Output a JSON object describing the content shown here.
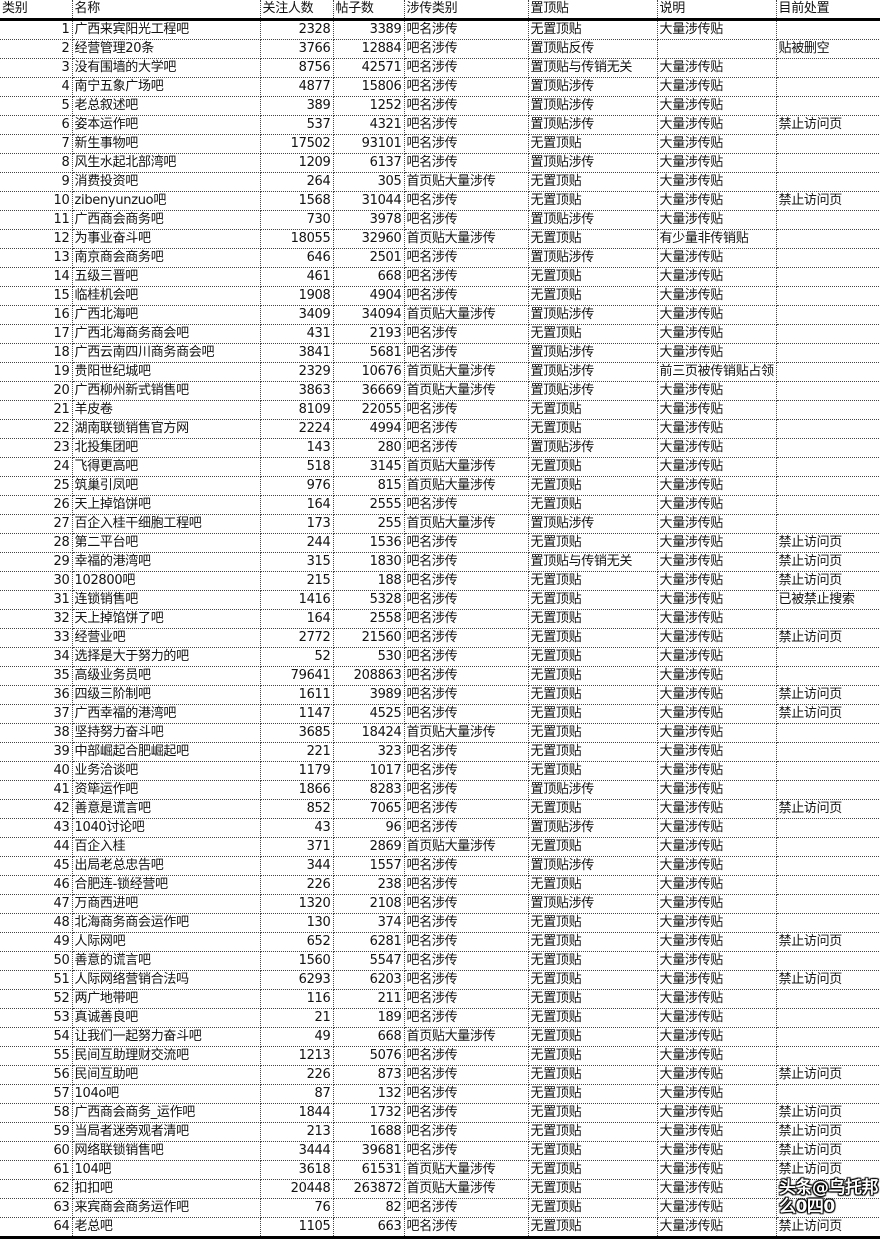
{
  "headers": [
    "类别",
    "名称",
    "关注人数",
    "帖子数",
    "涉传类别",
    "置顶贴",
    "说明",
    "目前处置"
  ],
  "rows": [
    [
      "1",
      "广西来宾阳光工程吧",
      "2328",
      "3389",
      "吧名涉传",
      "无置顶贴",
      "大量涉传贴",
      ""
    ],
    [
      "2",
      "经营管理20条",
      "3766",
      "12884",
      "吧名涉传",
      "置顶贴反传",
      "",
      "贴被删空"
    ],
    [
      "3",
      "没有围墙的大学吧",
      "8756",
      "42571",
      "吧名涉传",
      "置顶贴与传销无关",
      "大量涉传贴",
      ""
    ],
    [
      "4",
      "南宁五象广场吧",
      "4877",
      "15806",
      "吧名涉传",
      "置顶贴涉传",
      "大量涉传贴",
      ""
    ],
    [
      "5",
      "老总叙述吧",
      "389",
      "1252",
      "吧名涉传",
      "置顶贴涉传",
      "大量涉传贴",
      ""
    ],
    [
      "6",
      "姿本运作吧",
      "537",
      "4321",
      "吧名涉传",
      "置顶贴涉传",
      "大量涉传贴",
      "禁止访问页"
    ],
    [
      "7",
      "新生事物吧",
      "17502",
      "93101",
      "吧名涉传",
      "无置顶贴",
      "大量涉传贴",
      ""
    ],
    [
      "8",
      "风生水起北部湾吧",
      "1209",
      "6137",
      "吧名涉传",
      "置顶贴涉传",
      "大量涉传贴",
      ""
    ],
    [
      "9",
      "消费投资吧",
      "264",
      "305",
      "首页贴大量涉传",
      "无置顶贴",
      "大量涉传贴",
      ""
    ],
    [
      "10",
      "zibenyunzuo吧",
      "1568",
      "31044",
      "吧名涉传",
      "无置顶贴",
      "大量涉传贴",
      "禁止访问页"
    ],
    [
      "11",
      "广西商会商务吧",
      "730",
      "3978",
      "吧名涉传",
      "置顶贴涉传",
      "大量涉传贴",
      ""
    ],
    [
      "12",
      "为事业奋斗吧",
      "18055",
      "32960",
      "首页贴大量涉传",
      "无置顶贴",
      "有少量非传销贴",
      ""
    ],
    [
      "13",
      "南京商会商务吧",
      "646",
      "2501",
      "吧名涉传",
      "置顶贴涉传",
      "大量涉传贴",
      ""
    ],
    [
      "14",
      "五级三晋吧",
      "461",
      "668",
      "吧名涉传",
      "无置顶贴",
      "大量涉传贴",
      ""
    ],
    [
      "15",
      "临桂机会吧",
      "1908",
      "4904",
      "吧名涉传",
      "无置顶贴",
      "大量涉传贴",
      ""
    ],
    [
      "16",
      "广西北海吧",
      "3409",
      "34094",
      "首页贴大量涉传",
      "置顶贴涉传",
      "大量涉传贴",
      ""
    ],
    [
      "17",
      "广西北海商务商会吧",
      "431",
      "2193",
      "吧名涉传",
      "无置顶贴",
      "大量涉传贴",
      ""
    ],
    [
      "18",
      "广西云南四川商务商会吧",
      "3841",
      "5681",
      "吧名涉传",
      "置顶贴涉传",
      "大量涉传贴",
      ""
    ],
    [
      "19",
      "贵阳世纪城吧",
      "2329",
      "10676",
      "首页贴大量涉传",
      "置顶贴涉传",
      "前三页被传销贴占领",
      ""
    ],
    [
      "20",
      "广西柳州新式销售吧",
      "3863",
      "36669",
      "首页贴大量涉传",
      "置顶贴涉传",
      "大量涉传贴",
      ""
    ],
    [
      "21",
      "羊皮卷",
      "8109",
      "22055",
      "吧名涉传",
      "无置顶贴",
      "大量涉传贴",
      ""
    ],
    [
      "22",
      "湖南联锁销售官方网",
      "2224",
      "4994",
      "吧名涉传",
      "无置顶贴",
      "大量涉传贴",
      ""
    ],
    [
      "23",
      "北投集团吧",
      "143",
      "280",
      "吧名涉传",
      "置顶贴涉传",
      "大量涉传贴",
      ""
    ],
    [
      "24",
      "飞得更高吧",
      "518",
      "3145",
      "首页贴大量涉传",
      "无置顶贴",
      "大量涉传贴",
      ""
    ],
    [
      "25",
      "筑巢引凤吧",
      "976",
      "815",
      "首页贴大量涉传",
      "无置顶贴",
      "大量涉传贴",
      ""
    ],
    [
      "26",
      "天上掉馅饼吧",
      "164",
      "2555",
      "吧名涉传",
      "无置顶贴",
      "大量涉传贴",
      ""
    ],
    [
      "27",
      "百企入桂干细胞工程吧",
      "173",
      "255",
      "首页贴大量涉传",
      "置顶贴涉传",
      "大量涉传贴",
      ""
    ],
    [
      "28",
      "第二平台吧",
      "244",
      "1536",
      "吧名涉传",
      "无置顶贴",
      "大量涉传贴",
      "禁止访问页"
    ],
    [
      "29",
      "幸福的港湾吧",
      "315",
      "1830",
      "吧名涉传",
      "置顶贴与传销无关",
      "大量涉传贴",
      "禁止访问页"
    ],
    [
      "30",
      "102800吧",
      "215",
      "188",
      "吧名涉传",
      "无置顶贴",
      "大量涉传贴",
      "禁止访问页"
    ],
    [
      "31",
      "连锁销售吧",
      "1416",
      "5328",
      "吧名涉传",
      "无置顶贴",
      "大量涉传贴",
      "已被禁止搜索"
    ],
    [
      "32",
      "天上掉馅饼了吧",
      "164",
      "2558",
      "吧名涉传",
      "无置顶贴",
      "大量涉传贴",
      ""
    ],
    [
      "33",
      "经营业吧",
      "2772",
      "21560",
      "吧名涉传",
      "无置顶贴",
      "大量涉传贴",
      "禁止访问页"
    ],
    [
      "34",
      "选择是大于努力的吧",
      "52",
      "530",
      "吧名涉传",
      "无置顶贴",
      "大量涉传贴",
      ""
    ],
    [
      "35",
      "高级业务员吧",
      "79641",
      "208863",
      "吧名涉传",
      "无置顶贴",
      "大量涉传贴",
      ""
    ],
    [
      "36",
      "四级三阶制吧",
      "1611",
      "3989",
      "吧名涉传",
      "无置顶贴",
      "大量涉传贴",
      "禁止访问页"
    ],
    [
      "37",
      "广西幸福的港湾吧",
      "1147",
      "4525",
      "吧名涉传",
      "无置顶贴",
      "大量涉传贴",
      "禁止访问页"
    ],
    [
      "38",
      "坚持努力奋斗吧",
      "3685",
      "18424",
      "首页贴大量涉传",
      "无置顶贴",
      "大量涉传贴",
      ""
    ],
    [
      "39",
      "中部崛起合肥崛起吧",
      "221",
      "323",
      "吧名涉传",
      "无置顶贴",
      "大量涉传贴",
      ""
    ],
    [
      "40",
      "业务洽谈吧",
      "1179",
      "1017",
      "吧名涉传",
      "无置顶贴",
      "大量涉传贴",
      ""
    ],
    [
      "41",
      "资筚运作吧",
      "1866",
      "8283",
      "吧名涉传",
      "置顶贴涉传",
      "大量涉传贴",
      ""
    ],
    [
      "42",
      "善意是谎言吧",
      "852",
      "7065",
      "吧名涉传",
      "无置顶贴",
      "大量涉传贴",
      "禁止访问页"
    ],
    [
      "43",
      "1040讨论吧",
      "43",
      "96",
      "吧名涉传",
      "置顶贴涉传",
      "大量涉传贴",
      ""
    ],
    [
      "44",
      "百企入桂",
      "371",
      "2869",
      "首页贴大量涉传",
      "无置顶贴",
      "大量涉传贴",
      ""
    ],
    [
      "45",
      "出局老总忠告吧",
      "344",
      "1557",
      "吧名涉传",
      "置顶贴涉传",
      "大量涉传贴",
      ""
    ],
    [
      "46",
      "合肥连-锁经营吧",
      "226",
      "238",
      "吧名涉传",
      "无置顶贴",
      "大量涉传贴",
      ""
    ],
    [
      "47",
      "万商西进吧",
      "1320",
      "2108",
      "吧名涉传",
      "置顶贴涉传",
      "大量涉传贴",
      ""
    ],
    [
      "48",
      "北海商务商会运作吧",
      "130",
      "374",
      "吧名涉传",
      "无置顶贴",
      "大量涉传贴",
      ""
    ],
    [
      "49",
      "人际网吧",
      "652",
      "6281",
      "吧名涉传",
      "无置顶贴",
      "大量涉传贴",
      "禁止访问页"
    ],
    [
      "50",
      "善意的谎言吧",
      "1560",
      "5547",
      "吧名涉传",
      "无置顶贴",
      "大量涉传贴",
      ""
    ],
    [
      "51",
      "人际网络营销合法吗",
      "6293",
      "6203",
      "吧名涉传",
      "无置顶贴",
      "大量涉传贴",
      "禁止访问页"
    ],
    [
      "52",
      "两广地带吧",
      "116",
      "211",
      "吧名涉传",
      "无置顶贴",
      "大量涉传贴",
      ""
    ],
    [
      "53",
      "真诚善良吧",
      "21",
      "189",
      "吧名涉传",
      "无置顶贴",
      "大量涉传贴",
      ""
    ],
    [
      "54",
      "让我们一起努力奋斗吧",
      "49",
      "668",
      "首页贴大量涉传",
      "无置顶贴",
      "大量涉传贴",
      ""
    ],
    [
      "55",
      "民间互助理财交流吧",
      "1213",
      "5076",
      "吧名涉传",
      "无置顶贴",
      "大量涉传贴",
      ""
    ],
    [
      "56",
      "民间互助吧",
      "226",
      "873",
      "吧名涉传",
      "无置顶贴",
      "大量涉传贴",
      "禁止访问页"
    ],
    [
      "57",
      "104o吧",
      "87",
      "132",
      "吧名涉传",
      "无置顶贴",
      "大量涉传贴",
      ""
    ],
    [
      "58",
      "广西商会商务_运作吧",
      "1844",
      "1732",
      "吧名涉传",
      "无置顶贴",
      "大量涉传贴",
      "禁止访问页"
    ],
    [
      "59",
      "当局者迷旁观者清吧",
      "213",
      "1688",
      "吧名涉传",
      "无置顶贴",
      "大量涉传贴",
      "禁止访问页"
    ],
    [
      "60",
      "网络联锁销售吧",
      "3444",
      "39681",
      "吧名涉传",
      "无置顶贴",
      "大量涉传贴",
      "禁止访问页"
    ],
    [
      "61",
      "104吧",
      "3618",
      "61531",
      "首页贴大量涉传",
      "无置顶贴",
      "大量涉传贴",
      "禁止访问页"
    ],
    [
      "62",
      "扣扣吧",
      "20448",
      "263872",
      "首页贴大量涉传",
      "无置顶贴",
      "大量涉传贴",
      ""
    ],
    [
      "63",
      "来宾商会商务运作吧",
      "76",
      "82",
      "吧名涉传",
      "无置顶贴",
      "大量涉传贴",
      ""
    ],
    [
      "64",
      "老总吧",
      "1105",
      "663",
      "吧名涉传",
      "无置顶贴",
      "大量涉传贴",
      "禁止访问页"
    ]
  ],
  "watermark": "头条@乌托邦么0四0"
}
